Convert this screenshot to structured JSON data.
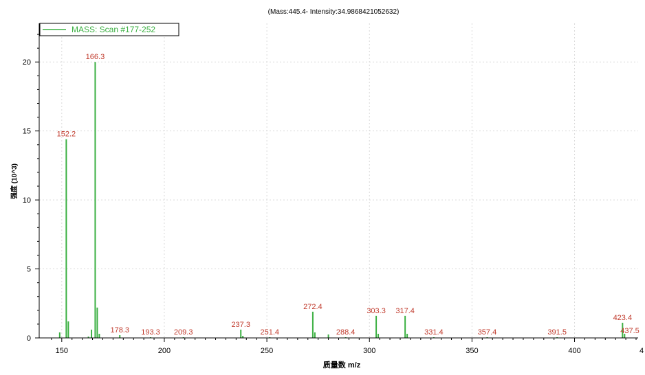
{
  "chart_data": {
    "type": "bar",
    "title": "(Mass:445.4- Intensity:34.9868421052632)",
    "xlabel": "质量数 m/z",
    "ylabel": "强度 (10^3)",
    "xlim": [
      139,
      431
    ],
    "ylim": [
      0,
      22.8
    ],
    "x_ticks": [
      150,
      200,
      250,
      300,
      350,
      400
    ],
    "x_tick_labels": [
      "150",
      "200",
      "250",
      "300",
      "350",
      "400"
    ],
    "x_edge_label": "4",
    "y_ticks": [
      0,
      5,
      10,
      15,
      20
    ],
    "y_tick_labels": [
      "0",
      "5",
      "10",
      "15",
      "20"
    ],
    "grid": true,
    "legend_position": "top-left",
    "series": [
      {
        "name": "MASS: Scan #177-252",
        "color": "#3cb043",
        "x": [
          149,
          152.2,
          153.2,
          163,
          164.5,
          166.3,
          167.3,
          168.3,
          178.3,
          193.3,
          209.3,
          237.3,
          238.3,
          251.4,
          272.4,
          273.4,
          280,
          288.4,
          303.3,
          304.3,
          317.4,
          318.4,
          331.4,
          357.4,
          391.5,
          423.4,
          424.4,
          437.5
        ],
        "y": [
          0.4,
          14.4,
          1.2,
          0.1,
          0.6,
          20.0,
          2.2,
          0.3,
          0.2,
          0.05,
          0.05,
          0.6,
          0.15,
          0.05,
          1.9,
          0.4,
          0.25,
          0.05,
          1.6,
          0.3,
          1.6,
          0.3,
          0.05,
          0.05,
          0.05,
          1.1,
          0.3,
          0.15
        ]
      }
    ],
    "peak_labels": [
      {
        "x": 152.2,
        "y": 14.4,
        "text": "152.2"
      },
      {
        "x": 166.3,
        "y": 20.0,
        "text": "166.3"
      },
      {
        "x": 178.3,
        "y": 0.2,
        "text": "178.3"
      },
      {
        "x": 193.3,
        "y": 0.05,
        "text": "193.3"
      },
      {
        "x": 209.3,
        "y": 0.05,
        "text": "209.3"
      },
      {
        "x": 237.3,
        "y": 0.6,
        "text": "237.3"
      },
      {
        "x": 251.4,
        "y": 0.05,
        "text": "251.4"
      },
      {
        "x": 272.4,
        "y": 1.9,
        "text": "272.4"
      },
      {
        "x": 288.4,
        "y": 0.05,
        "text": "288.4"
      },
      {
        "x": 303.3,
        "y": 1.6,
        "text": "303.3"
      },
      {
        "x": 317.4,
        "y": 1.6,
        "text": "317.4"
      },
      {
        "x": 331.4,
        "y": 0.05,
        "text": "331.4"
      },
      {
        "x": 357.4,
        "y": 0.05,
        "text": "357.4"
      },
      {
        "x": 391.5,
        "y": 0.05,
        "text": "391.5"
      },
      {
        "x": 423.4,
        "y": 1.1,
        "text": "423.4"
      },
      {
        "x": 437.5,
        "y": 0.15,
        "text": "437.5"
      }
    ],
    "colors": {
      "bar": "#3cb043",
      "peak_label": "#c0392b",
      "grid": "#d9d9d9",
      "axis": "#000000"
    }
  }
}
